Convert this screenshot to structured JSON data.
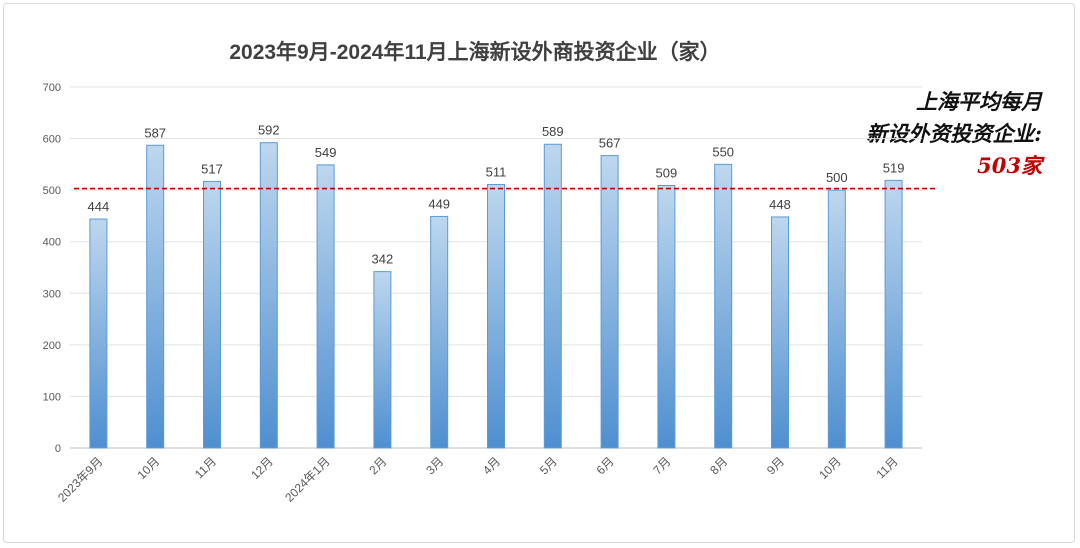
{
  "chart_data": {
    "type": "bar",
    "title": "2023年9月-2024年11月上海新设外商投资企业（家）",
    "categories": [
      "2023年9月",
      "10月",
      "11月",
      "12月",
      "2024年1月",
      "2月",
      "3月",
      "4月",
      "5月",
      "6月",
      "7月",
      "8月",
      "9月",
      "10月",
      "11月"
    ],
    "values": [
      444,
      587,
      517,
      592,
      549,
      342,
      449,
      511,
      589,
      567,
      509,
      550,
      448,
      500,
      519
    ],
    "ylim": [
      0,
      700
    ],
    "yticks": [
      0,
      100,
      200,
      300,
      400,
      500,
      600,
      700
    ],
    "grid": true,
    "bar_color": "#5b9bd5",
    "reference_line": {
      "value": 503,
      "color": "#c00000",
      "style": "dashed"
    },
    "annotation": {
      "line1": "上海平均每月",
      "line2": "新设外资投资企业:",
      "value": "503家"
    }
  }
}
